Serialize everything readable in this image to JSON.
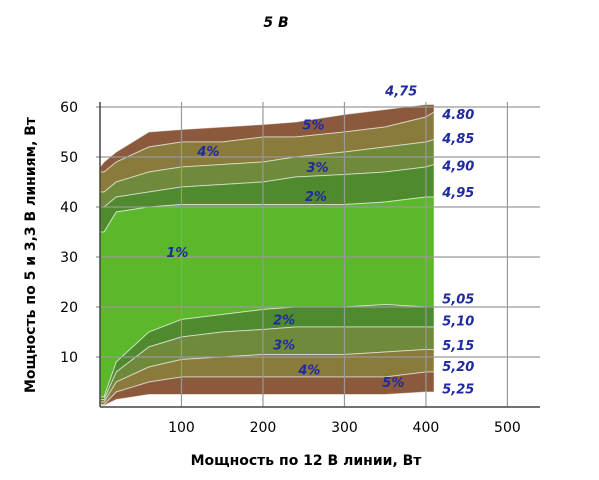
{
  "chart_data": {
    "type": "area",
    "title": "5 В",
    "xlabel": "Мощность по 12 В линии, Вт",
    "ylabel": "Мощность по 5 и 3,3 В линиям, Вт",
    "xlim": [
      0,
      540
    ],
    "ylim": [
      0,
      60
    ],
    "x_ticks": [
      "100",
      "200",
      "300",
      "400",
      "500"
    ],
    "y_ticks": [
      "10",
      "20",
      "30",
      "40",
      "50",
      "60"
    ],
    "grid": true,
    "x": [
      0,
      5,
      20,
      60,
      100,
      150,
      200,
      240,
      300,
      350,
      400,
      410
    ],
    "bands": [
      {
        "name": "5% upper",
        "color": "#8b5a3c",
        "lower": [
          47,
          47,
          49,
          52,
          53,
          53,
          54,
          54,
          55,
          56,
          58,
          59
        ],
        "upper": [
          48,
          49,
          51,
          55,
          55.5,
          56,
          56.5,
          57,
          58.5,
          59.5,
          60.5,
          60.5
        ]
      },
      {
        "name": "4% upper",
        "color": "#8a7a3c",
        "lower": [
          43,
          43,
          45,
          47,
          48,
          48.5,
          49,
          50,
          51,
          52,
          53,
          53.5
        ],
        "upper": [
          47,
          47,
          49,
          52,
          53,
          53,
          54,
          54,
          55,
          56,
          58,
          59
        ]
      },
      {
        "name": "3% upper",
        "color": "#6f8a3a",
        "lower": [
          40,
          40,
          42,
          43,
          44,
          44.5,
          45,
          46,
          46.5,
          47,
          48,
          48.5
        ],
        "upper": [
          43,
          43,
          45,
          47,
          48,
          48.5,
          49,
          50,
          51,
          52,
          53,
          53.5
        ]
      },
      {
        "name": "2% upper",
        "color": "#4f8a2e",
        "lower": [
          35,
          35,
          39,
          40,
          40.5,
          40.5,
          40.5,
          40.5,
          40.5,
          41,
          42,
          42
        ],
        "upper": [
          40,
          40,
          42,
          43,
          44,
          44.5,
          45,
          46,
          46.5,
          47,
          48,
          48.5
        ]
      },
      {
        "name": "1%",
        "color": "#5bb82a",
        "lower": [
          2,
          2,
          9,
          15,
          17.5,
          18.5,
          19.5,
          20,
          20,
          20.5,
          20,
          20
        ],
        "upper": [
          35,
          35,
          39,
          40,
          40.5,
          40.5,
          40.5,
          40.5,
          40.5,
          41,
          42,
          42
        ]
      },
      {
        "name": "2% lower",
        "color": "#4f8a2e",
        "lower": [
          1.5,
          1.5,
          7,
          12,
          14,
          15,
          15.5,
          16,
          16,
          16,
          16,
          16
        ],
        "upper": [
          2,
          2,
          9,
          15,
          17.5,
          18.5,
          19.5,
          20,
          20,
          20.5,
          20,
          20
        ]
      },
      {
        "name": "3% lower",
        "color": "#6f8a3a",
        "lower": [
          1,
          1,
          5,
          8,
          9.5,
          10,
          10.5,
          10.5,
          10.5,
          11,
          11.5,
          11.5
        ],
        "upper": [
          1.5,
          1.5,
          7,
          12,
          14,
          15,
          15.5,
          16,
          16,
          16,
          16,
          16
        ]
      },
      {
        "name": "4% lower",
        "color": "#8a7a3c",
        "lower": [
          0.5,
          0.5,
          3,
          5,
          6,
          6,
          6,
          6,
          6,
          6,
          7,
          7
        ],
        "upper": [
          1,
          1,
          5,
          8,
          9.5,
          10,
          10.5,
          10.5,
          10.5,
          11,
          11.5,
          11.5
        ]
      },
      {
        "name": "5% lower",
        "color": "#8b5a3c",
        "lower": [
          0.3,
          0.3,
          1.5,
          2.5,
          2.5,
          2.5,
          2.5,
          2.5,
          2.5,
          2.5,
          3,
          3
        ],
        "upper": [
          0.5,
          0.5,
          3,
          5,
          6,
          6,
          6,
          6,
          6,
          6,
          7,
          7
        ]
      }
    ],
    "region_labels": [
      {
        "text": "5%",
        "x": 262,
        "y": 55.5
      },
      {
        "text": "4%",
        "x": 133,
        "y": 50.2
      },
      {
        "text": "3%",
        "x": 267,
        "y": 47
      },
      {
        "text": "2%",
        "x": 265,
        "y": 41.2
      },
      {
        "text": "1%",
        "x": 95,
        "y": 30
      },
      {
        "text": "2%",
        "x": 226,
        "y": 16.5
      },
      {
        "text": "3%",
        "x": 226,
        "y": 11.5
      },
      {
        "text": "4%",
        "x": 257,
        "y": 6.5
      },
      {
        "text": "5%",
        "x": 360,
        "y": 4
      }
    ],
    "voltage_labels": [
      {
        "text": "4,75",
        "x": 350,
        "y": 62.3
      },
      {
        "text": "4.80",
        "x": 420,
        "y": 57.6
      },
      {
        "text": "4,85",
        "x": 420,
        "y": 52.8
      },
      {
        "text": "4,90",
        "x": 420,
        "y": 47.3
      },
      {
        "text": "4,95",
        "x": 420,
        "y": 42
      },
      {
        "text": "5,05",
        "x": 420,
        "y": 20.7
      },
      {
        "text": "5,10",
        "x": 420,
        "y": 16.3
      },
      {
        "text": "5,15",
        "x": 420,
        "y": 11.4
      },
      {
        "text": "5,20",
        "x": 420,
        "y": 7.2
      },
      {
        "text": "5,25",
        "x": 420,
        "y": 2.7
      }
    ]
  }
}
